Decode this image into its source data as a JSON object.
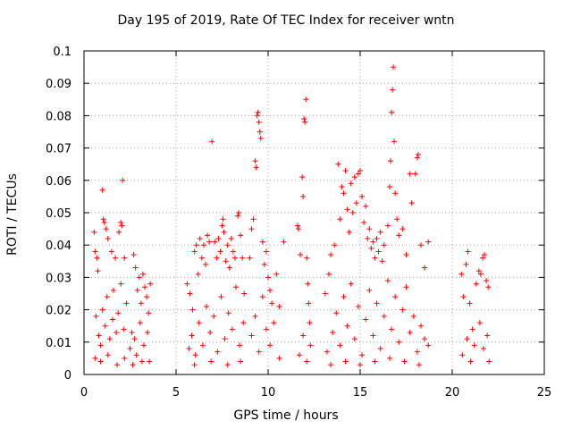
{
  "chart_data": {
    "type": "scatter",
    "title": "Day 195 of 2019, Rate Of TEC Index for receiver wntn",
    "xlabel": "GPS time / hours",
    "ylabel": "ROTI / TECUs",
    "xlim": [
      0,
      25
    ],
    "ylim": [
      0,
      0.1
    ],
    "grid": true,
    "marker": "+",
    "color": "#ff0000",
    "xticks": [
      {
        "value": 0,
        "label": "0"
      },
      {
        "value": 5,
        "label": "5"
      },
      {
        "value": 10,
        "label": "10"
      },
      {
        "value": 15,
        "label": "15"
      },
      {
        "value": 20,
        "label": "20"
      },
      {
        "value": 25,
        "label": "25"
      }
    ],
    "yticks": [
      {
        "value": 0,
        "label": "0"
      },
      {
        "value": 0.01,
        "label": "0.01"
      },
      {
        "value": 0.02,
        "label": "0.02"
      },
      {
        "value": 0.03,
        "label": "0.03"
      },
      {
        "value": 0.04,
        "label": "0.04"
      },
      {
        "value": 0.05,
        "label": "0.05"
      },
      {
        "value": 0.06,
        "label": "0.06"
      },
      {
        "value": 0.07,
        "label": "0.07"
      },
      {
        "value": 0.08,
        "label": "0.08"
      },
      {
        "value": 0.09,
        "label": "0.09"
      },
      {
        "value": 0.1,
        "label": "0.1"
      }
    ],
    "series": [
      {
        "name": "ROTI",
        "points": [
          [
            0.55,
            0.044
          ],
          [
            0.6,
            0.038
          ],
          [
            0.7,
            0.036
          ],
          [
            0.75,
            0.032
          ],
          [
            1.0,
            0.057
          ],
          [
            1.05,
            0.048
          ],
          [
            1.1,
            0.047
          ],
          [
            1.2,
            0.045
          ],
          [
            1.3,
            0.042
          ],
          [
            1.5,
            0.038
          ],
          [
            1.7,
            0.036
          ],
          [
            1.9,
            0.044
          ],
          [
            2.0,
            0.047
          ],
          [
            2.05,
            0.046
          ],
          [
            2.1,
            0.06
          ],
          [
            2.2,
            0.036
          ],
          [
            0.65,
            0.018
          ],
          [
            0.8,
            0.012
          ],
          [
            0.9,
            0.009
          ],
          [
            1.0,
            0.02
          ],
          [
            1.15,
            0.015
          ],
          [
            1.25,
            0.024
          ],
          [
            1.4,
            0.011
          ],
          [
            1.55,
            0.017
          ],
          [
            1.6,
            0.026
          ],
          [
            1.75,
            0.013
          ],
          [
            1.85,
            0.019
          ],
          [
            2.0,
            0.028
          ],
          [
            2.15,
            0.014
          ],
          [
            2.3,
            0.022
          ],
          [
            0.6,
            0.005
          ],
          [
            0.9,
            0.004
          ],
          [
            1.3,
            0.006
          ],
          [
            1.8,
            0.003
          ],
          [
            2.2,
            0.005
          ],
          [
            2.5,
            0.008
          ],
          [
            2.6,
            0.013
          ],
          [
            2.7,
            0.037
          ],
          [
            2.8,
            0.033
          ],
          [
            2.9,
            0.026
          ],
          [
            3.0,
            0.03
          ],
          [
            3.1,
            0.022
          ],
          [
            3.2,
            0.031
          ],
          [
            3.3,
            0.027
          ],
          [
            3.4,
            0.024
          ],
          [
            3.5,
            0.019
          ],
          [
            3.6,
            0.028
          ],
          [
            2.75,
            0.011
          ],
          [
            2.85,
            0.006
          ],
          [
            3.05,
            0.016
          ],
          [
            3.25,
            0.009
          ],
          [
            3.45,
            0.013
          ],
          [
            3.55,
            0.004
          ],
          [
            2.65,
            0.003
          ],
          [
            3.15,
            0.004
          ],
          [
            5.6,
            0.028
          ],
          [
            5.75,
            0.025
          ],
          [
            5.9,
            0.02
          ],
          [
            6.0,
            0.038
          ],
          [
            6.1,
            0.04
          ],
          [
            6.2,
            0.031
          ],
          [
            6.3,
            0.042
          ],
          [
            6.4,
            0.036
          ],
          [
            6.5,
            0.04
          ],
          [
            6.6,
            0.034
          ],
          [
            6.7,
            0.043
          ],
          [
            6.8,
            0.041
          ],
          [
            6.95,
            0.072
          ],
          [
            7.1,
            0.041
          ],
          [
            7.2,
            0.036
          ],
          [
            7.3,
            0.042
          ],
          [
            7.4,
            0.038
          ],
          [
            7.5,
            0.046
          ],
          [
            7.55,
            0.048
          ],
          [
            7.6,
            0.044
          ],
          [
            7.7,
            0.035
          ],
          [
            7.8,
            0.04
          ],
          [
            7.9,
            0.033
          ],
          [
            8.0,
            0.042
          ],
          [
            8.1,
            0.038
          ],
          [
            8.2,
            0.036
          ],
          [
            8.35,
            0.049
          ],
          [
            8.4,
            0.05
          ],
          [
            8.5,
            0.043
          ],
          [
            8.6,
            0.036
          ],
          [
            8.7,
            0.025
          ],
          [
            5.7,
            0.008
          ],
          [
            5.85,
            0.012
          ],
          [
            6.05,
            0.006
          ],
          [
            6.25,
            0.016
          ],
          [
            6.45,
            0.009
          ],
          [
            6.65,
            0.021
          ],
          [
            6.85,
            0.013
          ],
          [
            7.05,
            0.018
          ],
          [
            7.25,
            0.007
          ],
          [
            7.45,
            0.024
          ],
          [
            7.65,
            0.011
          ],
          [
            7.85,
            0.019
          ],
          [
            8.05,
            0.014
          ],
          [
            8.25,
            0.027
          ],
          [
            8.45,
            0.009
          ],
          [
            8.65,
            0.016
          ],
          [
            6.0,
            0.003
          ],
          [
            6.9,
            0.004
          ],
          [
            7.8,
            0.003
          ],
          [
            8.5,
            0.004
          ],
          [
            9.0,
            0.036
          ],
          [
            9.1,
            0.045
          ],
          [
            9.2,
            0.048
          ],
          [
            9.3,
            0.066
          ],
          [
            9.35,
            0.064
          ],
          [
            9.4,
            0.08
          ],
          [
            9.45,
            0.081
          ],
          [
            9.5,
            0.078
          ],
          [
            9.55,
            0.075
          ],
          [
            9.6,
            0.073
          ],
          [
            9.7,
            0.041
          ],
          [
            9.8,
            0.034
          ],
          [
            9.9,
            0.038
          ],
          [
            10.0,
            0.03
          ],
          [
            10.1,
            0.026
          ],
          [
            10.2,
            0.022
          ],
          [
            10.45,
            0.031
          ],
          [
            10.6,
            0.021
          ],
          [
            10.85,
            0.041
          ],
          [
            9.1,
            0.012
          ],
          [
            9.3,
            0.018
          ],
          [
            9.5,
            0.007
          ],
          [
            9.7,
            0.024
          ],
          [
            9.9,
            0.014
          ],
          [
            10.1,
            0.009
          ],
          [
            10.3,
            0.016
          ],
          [
            10.6,
            0.005
          ],
          [
            11.6,
            0.046
          ],
          [
            11.65,
            0.045
          ],
          [
            11.75,
            0.037
          ],
          [
            11.85,
            0.061
          ],
          [
            11.9,
            0.055
          ],
          [
            11.95,
            0.079
          ],
          [
            12.0,
            0.078
          ],
          [
            12.05,
            0.085
          ],
          [
            12.1,
            0.036
          ],
          [
            12.15,
            0.028
          ],
          [
            12.2,
            0.022
          ],
          [
            12.25,
            0.016
          ],
          [
            11.7,
            0.006
          ],
          [
            11.9,
            0.012
          ],
          [
            12.1,
            0.004
          ],
          [
            12.3,
            0.009
          ],
          [
            13.1,
            0.025
          ],
          [
            13.3,
            0.031
          ],
          [
            13.4,
            0.037
          ],
          [
            13.6,
            0.04
          ],
          [
            13.8,
            0.065
          ],
          [
            13.9,
            0.048
          ],
          [
            14.0,
            0.058
          ],
          [
            14.1,
            0.056
          ],
          [
            14.2,
            0.063
          ],
          [
            14.3,
            0.051
          ],
          [
            14.4,
            0.044
          ],
          [
            14.5,
            0.059
          ],
          [
            14.6,
            0.05
          ],
          [
            14.7,
            0.061
          ],
          [
            14.8,
            0.053
          ],
          [
            14.9,
            0.062
          ],
          [
            15.0,
            0.063
          ],
          [
            15.1,
            0.055
          ],
          [
            15.2,
            0.047
          ],
          [
            15.3,
            0.052
          ],
          [
            15.4,
            0.042
          ],
          [
            15.5,
            0.045
          ],
          [
            15.6,
            0.039
          ],
          [
            15.7,
            0.041
          ],
          [
            15.8,
            0.036
          ],
          [
            15.9,
            0.042
          ],
          [
            16.0,
            0.038
          ],
          [
            16.1,
            0.044
          ],
          [
            16.2,
            0.035
          ],
          [
            16.3,
            0.04
          ],
          [
            16.5,
            0.046
          ],
          [
            16.6,
            0.058
          ],
          [
            16.65,
            0.066
          ],
          [
            16.7,
            0.081
          ],
          [
            16.75,
            0.088
          ],
          [
            16.8,
            0.095
          ],
          [
            16.85,
            0.072
          ],
          [
            16.9,
            0.056
          ],
          [
            17.0,
            0.048
          ],
          [
            17.1,
            0.043
          ],
          [
            17.3,
            0.045
          ],
          [
            17.5,
            0.037
          ],
          [
            17.7,
            0.062
          ],
          [
            17.8,
            0.053
          ],
          [
            18.0,
            0.062
          ],
          [
            18.1,
            0.067
          ],
          [
            18.15,
            0.068
          ],
          [
            18.3,
            0.04
          ],
          [
            18.5,
            0.033
          ],
          [
            18.7,
            0.041
          ],
          [
            13.2,
            0.007
          ],
          [
            13.5,
            0.013
          ],
          [
            13.7,
            0.019
          ],
          [
            13.9,
            0.009
          ],
          [
            14.1,
            0.024
          ],
          [
            14.3,
            0.015
          ],
          [
            14.5,
            0.028
          ],
          [
            14.7,
            0.011
          ],
          [
            14.9,
            0.021
          ],
          [
            15.1,
            0.006
          ],
          [
            15.3,
            0.017
          ],
          [
            15.5,
            0.026
          ],
          [
            15.7,
            0.012
          ],
          [
            15.9,
            0.022
          ],
          [
            16.1,
            0.008
          ],
          [
            16.3,
            0.018
          ],
          [
            16.5,
            0.029
          ],
          [
            16.7,
            0.014
          ],
          [
            16.9,
            0.024
          ],
          [
            17.1,
            0.01
          ],
          [
            17.3,
            0.02
          ],
          [
            17.5,
            0.027
          ],
          [
            17.7,
            0.013
          ],
          [
            17.9,
            0.018
          ],
          [
            18.1,
            0.007
          ],
          [
            18.3,
            0.015
          ],
          [
            18.5,
            0.011
          ],
          [
            18.7,
            0.009
          ],
          [
            13.4,
            0.003
          ],
          [
            14.2,
            0.004
          ],
          [
            15.0,
            0.003
          ],
          [
            15.8,
            0.004
          ],
          [
            16.6,
            0.005
          ],
          [
            17.4,
            0.004
          ],
          [
            18.2,
            0.003
          ],
          [
            20.5,
            0.031
          ],
          [
            20.6,
            0.024
          ],
          [
            20.75,
            0.034
          ],
          [
            20.85,
            0.038
          ],
          [
            20.95,
            0.022
          ],
          [
            21.1,
            0.014
          ],
          [
            21.3,
            0.028
          ],
          [
            21.45,
            0.032
          ],
          [
            21.55,
            0.031
          ],
          [
            21.65,
            0.036
          ],
          [
            21.75,
            0.037
          ],
          [
            21.85,
            0.029
          ],
          [
            21.95,
            0.027
          ],
          [
            20.55,
            0.006
          ],
          [
            20.8,
            0.011
          ],
          [
            21.0,
            0.004
          ],
          [
            21.2,
            0.009
          ],
          [
            21.5,
            0.016
          ],
          [
            21.7,
            0.008
          ],
          [
            21.9,
            0.012
          ],
          [
            22.0,
            0.004
          ]
        ]
      }
    ]
  }
}
